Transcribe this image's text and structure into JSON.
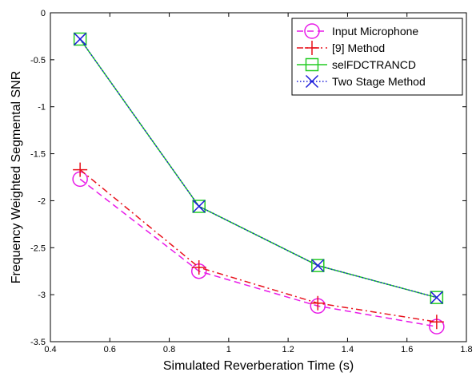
{
  "chart_data": {
    "type": "line",
    "title": "",
    "xlabel": "Simulated Reverberation Time (s)",
    "ylabel": "Frequency Weighted Segmental SNR",
    "xlim": [
      0.4,
      1.8
    ],
    "ylim": [
      -3.5,
      0
    ],
    "xticks": [
      "0.4",
      "0.6",
      "0.8",
      "1",
      "1.2",
      "1.4",
      "1.6",
      "1.8"
    ],
    "yticks": [
      "0",
      "-0.5",
      "-1",
      "-1.5",
      "-2",
      "-2.5",
      "-3",
      "-3.5"
    ],
    "grid": false,
    "legend_position": "top-right",
    "x": [
      0.5,
      0.9,
      1.3,
      1.7
    ],
    "series": [
      {
        "name": "Input Microphone",
        "values": [
          -1.77,
          -2.75,
          -3.12,
          -3.34
        ],
        "color": "#e81be8",
        "line_style": "dashed",
        "marker": "circle"
      },
      {
        "name": "[9] Method",
        "values": [
          -1.67,
          -2.71,
          -3.09,
          -3.29
        ],
        "color": "#e8111b",
        "line_style": "dashdot",
        "marker": "plus"
      },
      {
        "name": "selFDCTRANCD",
        "values": [
          -0.28,
          -2.06,
          -2.69,
          -3.03
        ],
        "color": "#22cc22",
        "line_style": "solid",
        "marker": "square"
      },
      {
        "name": "Two Stage Method",
        "values": [
          -0.28,
          -2.06,
          -2.69,
          -3.03
        ],
        "color": "#1a1ad9",
        "line_style": "dotted",
        "marker": "x"
      }
    ]
  }
}
